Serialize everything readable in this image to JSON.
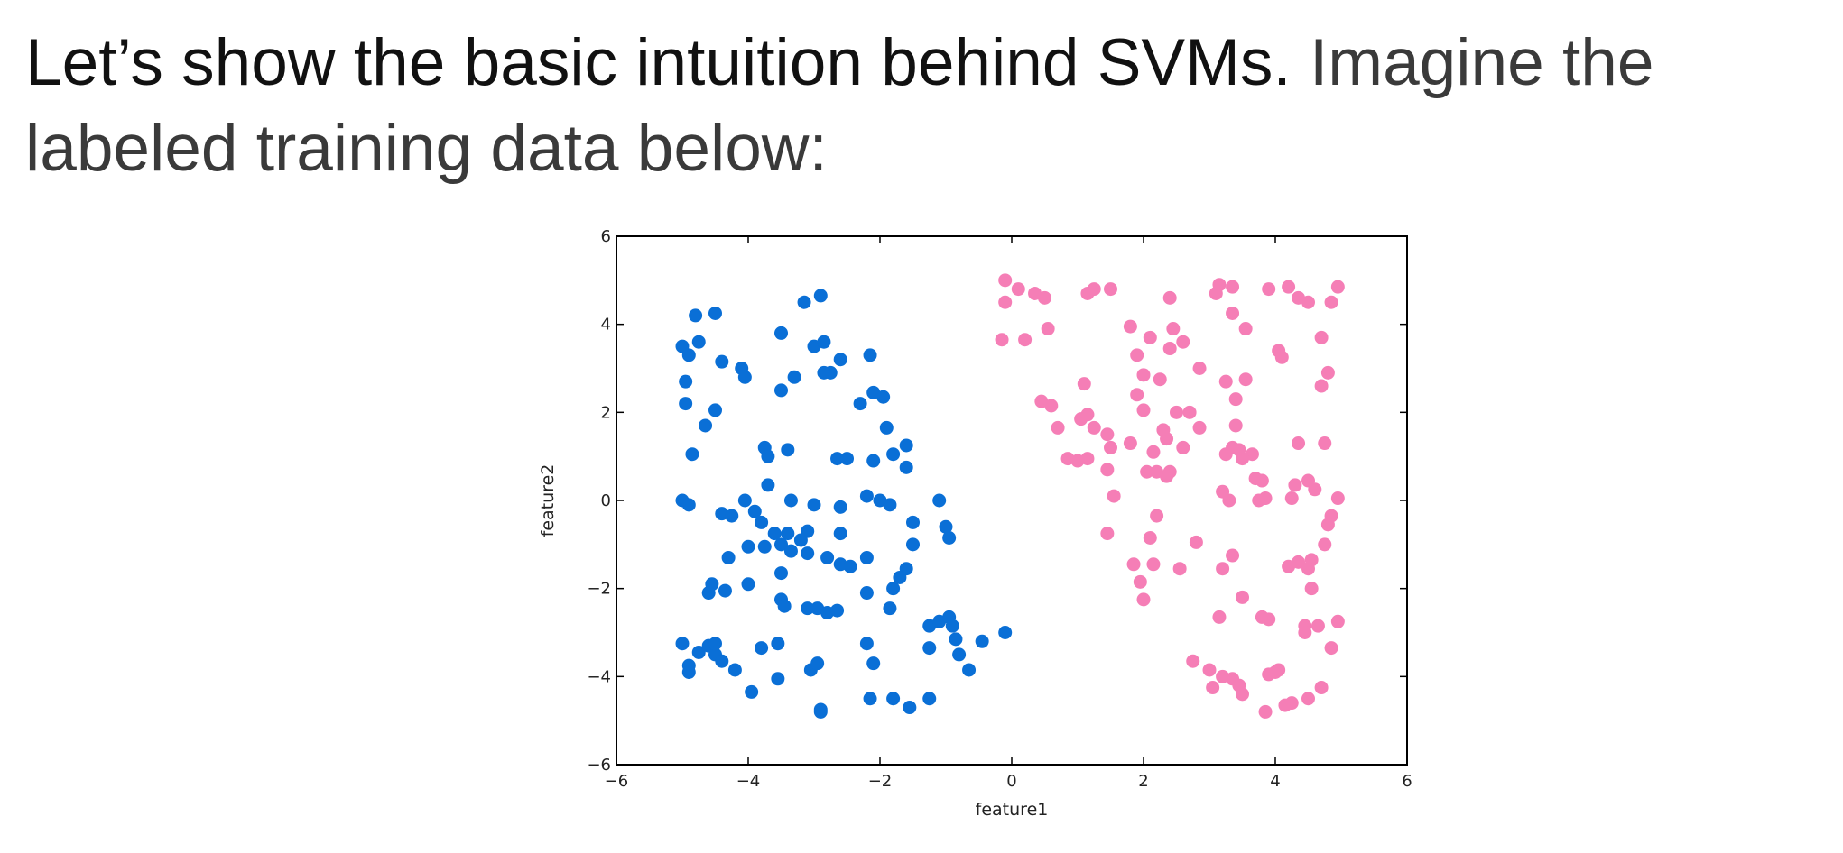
{
  "slide": {
    "text_strong": "Let’s show the basic intuition behind SVMs.",
    "text_soft": "Imagine the labeled training data below:"
  },
  "chart_data": {
    "type": "scatter",
    "title": "",
    "xlabel": "feature1",
    "ylabel": "feature2",
    "xlim": [
      -6,
      6
    ],
    "ylim": [
      -6,
      6
    ],
    "xticks": [
      -6,
      -4,
      -2,
      0,
      2,
      4,
      6
    ],
    "yticks": [
      -6,
      -4,
      -2,
      0,
      2,
      4,
      6
    ],
    "xtick_labels": [
      "−6",
      "−4",
      "−2",
      "0",
      "2",
      "4",
      "6"
    ],
    "ytick_labels": [
      "−6",
      "−4",
      "−2",
      "0",
      "2",
      "4",
      "6"
    ],
    "grid": false,
    "legend": "none",
    "series": [
      {
        "color": "#0a6fd6",
        "points": [
          [
            -4.8,
            4.2
          ],
          [
            -4.5,
            4.25
          ],
          [
            -4.9,
            3.3
          ],
          [
            -4.75,
            3.6
          ],
          [
            -5.0,
            3.5
          ],
          [
            -4.4,
            3.15
          ],
          [
            -4.95,
            2.7
          ],
          [
            -4.5,
            2.05
          ],
          [
            -4.65,
            1.7
          ],
          [
            -4.95,
            2.2
          ],
          [
            -4.85,
            1.05
          ],
          [
            -4.1,
            3.0
          ],
          [
            -4.05,
            2.8
          ],
          [
            -3.5,
            3.8
          ],
          [
            -3.3,
            2.8
          ],
          [
            -3.5,
            2.5
          ],
          [
            -3.15,
            4.5
          ],
          [
            -2.9,
            4.65
          ],
          [
            -3.0,
            3.5
          ],
          [
            -2.85,
            3.6
          ],
          [
            -2.6,
            3.2
          ],
          [
            -2.75,
            2.9
          ],
          [
            -2.85,
            2.9
          ],
          [
            -2.15,
            3.3
          ],
          [
            -2.1,
            2.45
          ],
          [
            -1.95,
            2.35
          ],
          [
            -2.3,
            2.2
          ],
          [
            -1.9,
            1.65
          ],
          [
            -1.6,
            1.25
          ],
          [
            -1.8,
            1.05
          ],
          [
            -1.6,
            0.75
          ],
          [
            -2.1,
            0.9
          ],
          [
            -2.2,
            0.1
          ],
          [
            -2.0,
            0.0
          ],
          [
            -1.85,
            -0.1
          ],
          [
            -1.1,
            0.0
          ],
          [
            -1.0,
            -0.6
          ],
          [
            -0.95,
            -0.85
          ],
          [
            -1.5,
            -0.5
          ],
          [
            -1.5,
            -1.0
          ],
          [
            -1.6,
            -1.55
          ],
          [
            -2.65,
            0.95
          ],
          [
            -2.5,
            0.95
          ],
          [
            -3.75,
            1.2
          ],
          [
            -3.7,
            1.0
          ],
          [
            -3.4,
            1.15
          ],
          [
            -3.7,
            0.35
          ],
          [
            -3.35,
            0.0
          ],
          [
            -3.9,
            -0.25
          ],
          [
            -4.05,
            0.0
          ],
          [
            -4.4,
            -0.3
          ],
          [
            -4.25,
            -0.35
          ],
          [
            -5.0,
            0.0
          ],
          [
            -4.9,
            -0.1
          ],
          [
            -3.8,
            -0.5
          ],
          [
            -3.6,
            -0.75
          ],
          [
            -3.4,
            -0.75
          ],
          [
            -3.1,
            -0.7
          ],
          [
            -3.0,
            -0.1
          ],
          [
            -2.6,
            -0.15
          ],
          [
            -2.6,
            -0.75
          ],
          [
            -3.2,
            -0.9
          ],
          [
            -3.5,
            -1.0
          ],
          [
            -4.0,
            -1.05
          ],
          [
            -3.75,
            -1.05
          ],
          [
            -3.35,
            -1.15
          ],
          [
            -3.1,
            -1.2
          ],
          [
            -2.8,
            -1.3
          ],
          [
            -2.6,
            -1.45
          ],
          [
            -2.45,
            -1.5
          ],
          [
            -2.2,
            -1.3
          ],
          [
            -4.3,
            -1.3
          ],
          [
            -3.5,
            -1.65
          ],
          [
            -4.0,
            -1.9
          ],
          [
            -4.55,
            -1.9
          ],
          [
            -4.6,
            -2.1
          ],
          [
            -4.35,
            -2.05
          ],
          [
            -3.5,
            -2.25
          ],
          [
            -3.45,
            -2.4
          ],
          [
            -2.95,
            -2.45
          ],
          [
            -3.1,
            -2.45
          ],
          [
            -2.8,
            -2.55
          ],
          [
            -2.65,
            -2.5
          ],
          [
            -2.2,
            -2.1
          ],
          [
            -1.8,
            -2.0
          ],
          [
            -1.85,
            -2.45
          ],
          [
            -1.7,
            -1.75
          ],
          [
            -1.25,
            -2.85
          ],
          [
            -1.1,
            -2.75
          ],
          [
            -0.95,
            -2.65
          ],
          [
            -0.9,
            -2.85
          ],
          [
            -0.85,
            -3.15
          ],
          [
            -0.45,
            -3.2
          ],
          [
            -0.1,
            -3.0
          ],
          [
            -1.25,
            -3.35
          ],
          [
            -0.65,
            -3.85
          ],
          [
            -0.8,
            -3.5
          ],
          [
            -5.0,
            -3.25
          ],
          [
            -4.9,
            -3.75
          ],
          [
            -4.75,
            -3.45
          ],
          [
            -4.6,
            -3.3
          ],
          [
            -4.5,
            -3.5
          ],
          [
            -4.2,
            -3.85
          ],
          [
            -3.95,
            -4.35
          ],
          [
            -4.5,
            -3.25
          ],
          [
            -3.8,
            -3.35
          ],
          [
            -3.55,
            -3.25
          ],
          [
            -3.55,
            -4.05
          ],
          [
            -3.05,
            -3.85
          ],
          [
            -2.95,
            -3.7
          ],
          [
            -2.9,
            -4.75
          ],
          [
            -2.9,
            -4.8
          ],
          [
            -2.2,
            -3.25
          ],
          [
            -2.15,
            -4.5
          ],
          [
            -2.1,
            -3.7
          ],
          [
            -1.8,
            -4.5
          ],
          [
            -1.55,
            -4.7
          ],
          [
            -1.25,
            -4.5
          ],
          [
            -4.9,
            -3.9
          ],
          [
            -4.4,
            -3.65
          ]
        ]
      },
      {
        "color": "#f57eb6",
        "points": [
          [
            -0.1,
            5.0
          ],
          [
            0.1,
            4.8
          ],
          [
            -0.1,
            4.5
          ],
          [
            0.35,
            4.7
          ],
          [
            0.5,
            4.6
          ],
          [
            -0.15,
            3.65
          ],
          [
            0.2,
            3.65
          ],
          [
            0.55,
            3.9
          ],
          [
            1.15,
            4.7
          ],
          [
            1.25,
            4.8
          ],
          [
            1.5,
            4.8
          ],
          [
            2.4,
            4.6
          ],
          [
            3.15,
            4.9
          ],
          [
            3.35,
            4.85
          ],
          [
            3.1,
            4.7
          ],
          [
            3.9,
            4.8
          ],
          [
            4.2,
            4.85
          ],
          [
            4.35,
            4.6
          ],
          [
            4.5,
            4.5
          ],
          [
            4.95,
            4.85
          ],
          [
            4.85,
            4.5
          ],
          [
            3.35,
            4.25
          ],
          [
            3.55,
            3.9
          ],
          [
            1.8,
            3.95
          ],
          [
            2.1,
            3.7
          ],
          [
            2.45,
            3.9
          ],
          [
            2.6,
            3.6
          ],
          [
            1.9,
            3.3
          ],
          [
            2.4,
            3.45
          ],
          [
            2.85,
            3.0
          ],
          [
            4.05,
            3.4
          ],
          [
            4.1,
            3.25
          ],
          [
            4.7,
            3.7
          ],
          [
            4.8,
            2.9
          ],
          [
            4.7,
            2.6
          ],
          [
            0.45,
            2.25
          ],
          [
            0.6,
            2.15
          ],
          [
            0.7,
            1.65
          ],
          [
            1.1,
            2.65
          ],
          [
            1.05,
            1.85
          ],
          [
            1.15,
            1.95
          ],
          [
            1.25,
            1.65
          ],
          [
            1.45,
            1.5
          ],
          [
            1.5,
            1.2
          ],
          [
            1.9,
            2.4
          ],
          [
            2.0,
            2.05
          ],
          [
            2.0,
            2.85
          ],
          [
            2.25,
            2.75
          ],
          [
            2.3,
            1.6
          ],
          [
            2.5,
            2.0
          ],
          [
            2.7,
            2.0
          ],
          [
            2.85,
            1.65
          ],
          [
            3.25,
            2.7
          ],
          [
            3.55,
            2.75
          ],
          [
            3.4,
            2.3
          ],
          [
            3.4,
            1.7
          ],
          [
            3.65,
            1.05
          ],
          [
            2.6,
            1.2
          ],
          [
            2.35,
            1.4
          ],
          [
            2.15,
            1.1
          ],
          [
            1.8,
            1.3
          ],
          [
            0.85,
            0.95
          ],
          [
            1.0,
            0.9
          ],
          [
            1.15,
            0.95
          ],
          [
            1.45,
            0.7
          ],
          [
            2.2,
            0.65
          ],
          [
            2.35,
            0.55
          ],
          [
            2.4,
            0.65
          ],
          [
            3.25,
            1.05
          ],
          [
            3.35,
            1.2
          ],
          [
            3.45,
            1.15
          ],
          [
            3.5,
            0.95
          ],
          [
            3.7,
            0.5
          ],
          [
            3.8,
            0.45
          ],
          [
            4.35,
            1.3
          ],
          [
            4.75,
            1.3
          ],
          [
            4.3,
            0.35
          ],
          [
            4.5,
            0.45
          ],
          [
            4.6,
            0.25
          ],
          [
            4.25,
            0.05
          ],
          [
            4.95,
            0.05
          ],
          [
            1.55,
            0.1
          ],
          [
            2.05,
            0.65
          ],
          [
            3.2,
            0.2
          ],
          [
            3.3,
            0.0
          ],
          [
            3.75,
            0.0
          ],
          [
            3.85,
            0.05
          ],
          [
            4.85,
            -0.35
          ],
          [
            4.8,
            -0.55
          ],
          [
            4.75,
            -1.0
          ],
          [
            1.45,
            -0.75
          ],
          [
            2.2,
            -0.35
          ],
          [
            2.1,
            -0.85
          ],
          [
            2.15,
            -1.45
          ],
          [
            2.8,
            -0.95
          ],
          [
            1.85,
            -1.45
          ],
          [
            1.95,
            -1.85
          ],
          [
            2.55,
            -1.55
          ],
          [
            2.0,
            -2.25
          ],
          [
            3.35,
            -1.25
          ],
          [
            3.2,
            -1.55
          ],
          [
            3.5,
            -2.2
          ],
          [
            4.35,
            -1.4
          ],
          [
            4.55,
            -1.35
          ],
          [
            4.5,
            -1.55
          ],
          [
            4.55,
            -2.0
          ],
          [
            4.2,
            -1.5
          ],
          [
            3.15,
            -2.65
          ],
          [
            3.8,
            -2.65
          ],
          [
            3.9,
            -2.7
          ],
          [
            4.45,
            -2.85
          ],
          [
            4.45,
            -3.0
          ],
          [
            4.65,
            -2.85
          ],
          [
            4.95,
            -2.75
          ],
          [
            4.85,
            -3.35
          ],
          [
            2.75,
            -3.65
          ],
          [
            3.0,
            -3.85
          ],
          [
            3.05,
            -4.25
          ],
          [
            3.2,
            -4.0
          ],
          [
            3.45,
            -4.2
          ],
          [
            3.5,
            -4.4
          ],
          [
            3.35,
            -4.05
          ],
          [
            3.9,
            -3.95
          ],
          [
            4.0,
            -3.9
          ],
          [
            4.05,
            -3.85
          ],
          [
            4.15,
            -4.65
          ],
          [
            4.25,
            -4.6
          ],
          [
            3.85,
            -4.8
          ],
          [
            4.5,
            -4.5
          ],
          [
            4.7,
            -4.25
          ]
        ]
      }
    ]
  }
}
